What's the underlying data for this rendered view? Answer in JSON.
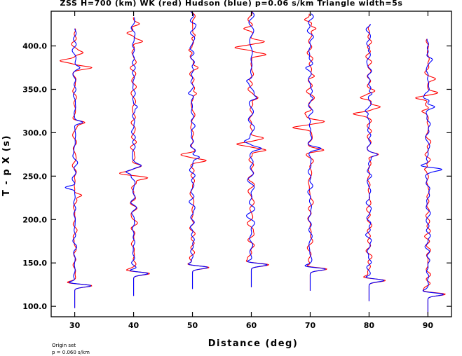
{
  "chart_data": {
    "type": "line",
    "title": "ZSS H=700 (km) WK (red) Hudson (blue) p=0.06 s/km Triangle width=5s",
    "xlabel": "Distance (deg)",
    "ylabel": "T - p X (s)",
    "xlim": [
      26,
      94
    ],
    "ylim": [
      88,
      440
    ],
    "x_ticks": [
      30,
      40,
      50,
      60,
      70,
      80,
      90
    ],
    "x_tick_labels": [
      "30",
      "40",
      "50",
      "60",
      "70",
      "80",
      "90"
    ],
    "y_ticks": [
      100,
      150,
      200,
      250,
      300,
      350,
      400
    ],
    "y_tick_labels": [
      "100.0",
      "150.0",
      "200.0",
      "250.0",
      "300.0",
      "350.0",
      "400.0"
    ],
    "grid": false,
    "legend": "none",
    "note": [
      "Origin set",
      "p = 0.060 s/km"
    ],
    "colors": {
      "WK": "#ff0000",
      "Hudson": "#0000ff"
    },
    "traces": [
      {
        "distance": 30,
        "t_start": 98,
        "t_end": 420,
        "first_arrival": 124,
        "red_events": [
          [
            124,
            3.2
          ],
          [
            127,
            -1.5
          ],
          [
            228,
            1.4
          ],
          [
            312,
            1.7
          ],
          [
            375,
            2.5
          ],
          [
            383,
            -2.2
          ],
          [
            392,
            1.2
          ]
        ],
        "blue_events": [
          [
            124,
            3.0
          ],
          [
            127,
            -1.4
          ],
          [
            237,
            -1.8
          ],
          [
            312,
            1.5
          ],
          [
            375,
            0.7
          ]
        ]
      },
      {
        "distance": 40,
        "t_start": 112,
        "t_end": 433,
        "first_arrival": 138,
        "red_events": [
          [
            138,
            3.0
          ],
          [
            141,
            -1.2
          ],
          [
            248,
            2.5
          ],
          [
            253,
            -2.2
          ],
          [
            262,
            1.0
          ],
          [
            405,
            1.5
          ],
          [
            415,
            -1.3
          ],
          [
            425,
            1.0
          ]
        ],
        "blue_events": [
          [
            138,
            2.8
          ],
          [
            141,
            -1.1
          ],
          [
            255,
            -1.4
          ],
          [
            262,
            1.1
          ],
          [
            330,
            0.8
          ]
        ]
      },
      {
        "distance": 50,
        "t_start": 120,
        "t_end": 440,
        "first_arrival": 145,
        "red_events": [
          [
            145,
            3.0
          ],
          [
            148,
            -1.2
          ],
          [
            268,
            2.2
          ],
          [
            275,
            -1.8
          ],
          [
            345,
            1.0
          ],
          [
            375,
            0.8
          ],
          [
            395,
            -1.0
          ],
          [
            412,
            0.8
          ]
        ],
        "blue_events": [
          [
            145,
            2.8
          ],
          [
            148,
            -1.1
          ],
          [
            272,
            1.3
          ],
          [
            345,
            -0.9
          ],
          [
            425,
            0.6
          ]
        ]
      },
      {
        "distance": 60,
        "t_start": 122,
        "t_end": 440,
        "first_arrival": 148,
        "red_events": [
          [
            148,
            3.0
          ],
          [
            151,
            -1.2
          ],
          [
            280,
            2.8
          ],
          [
            287,
            -2.5
          ],
          [
            294,
            1.8
          ],
          [
            340,
            1.0
          ],
          [
            390,
            2.6
          ],
          [
            398,
            -2.3
          ],
          [
            405,
            1.8
          ],
          [
            420,
            -1.3
          ]
        ],
        "blue_events": [
          [
            148,
            2.8
          ],
          [
            151,
            -1.1
          ],
          [
            282,
            1.5
          ],
          [
            290,
            -1.0
          ],
          [
            340,
            0.9
          ],
          [
            360,
            -0.7
          ]
        ]
      },
      {
        "distance": 70,
        "t_start": 118,
        "t_end": 437,
        "first_arrival": 143,
        "red_events": [
          [
            143,
            3.0
          ],
          [
            146,
            -1.2
          ],
          [
            280,
            2.2
          ],
          [
            306,
            -2.8
          ],
          [
            313,
            2.2
          ],
          [
            323,
            -0.8
          ],
          [
            365,
            0.8
          ],
          [
            420,
            1.3
          ],
          [
            430,
            -1.1
          ]
        ],
        "blue_events": [
          [
            143,
            2.8
          ],
          [
            146,
            -1.1
          ],
          [
            282,
            1.6
          ],
          [
            340,
            0.7
          ],
          [
            375,
            -0.6
          ]
        ]
      },
      {
        "distance": 80,
        "t_start": 106,
        "t_end": 425,
        "first_arrival": 130,
        "red_events": [
          [
            130,
            3.0
          ],
          [
            133,
            -1.2
          ],
          [
            275,
            1.6
          ],
          [
            322,
            -2.3
          ],
          [
            330,
            2.0
          ],
          [
            340,
            -1.5
          ],
          [
            348,
            0.8
          ]
        ],
        "blue_events": [
          [
            130,
            2.8
          ],
          [
            133,
            -1.1
          ],
          [
            275,
            1.5
          ],
          [
            325,
            -0.8
          ],
          [
            345,
            0.9
          ],
          [
            395,
            -0.5
          ]
        ]
      },
      {
        "distance": 90,
        "t_start": 90,
        "t_end": 408,
        "first_arrival": 114,
        "red_events": [
          [
            114,
            3.0
          ],
          [
            117,
            -1.2
          ],
          [
            258,
            -0.8
          ],
          [
            325,
            -1.3
          ],
          [
            340,
            -2.3
          ],
          [
            346,
            1.8
          ],
          [
            362,
            0.9
          ]
        ],
        "blue_events": [
          [
            114,
            2.8
          ],
          [
            117,
            -1.1
          ],
          [
            258,
            2.0
          ],
          [
            262,
            -1.2
          ],
          [
            330,
            1.0
          ],
          [
            340,
            -0.9
          ],
          [
            385,
            0.5
          ]
        ]
      }
    ]
  }
}
